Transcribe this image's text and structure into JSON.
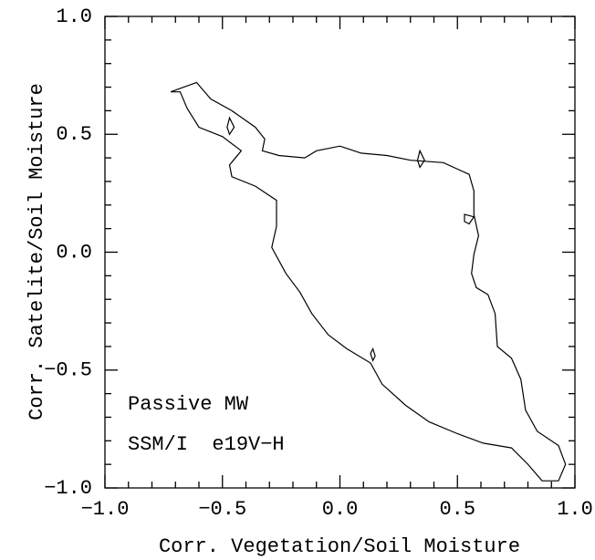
{
  "chart_data": {
    "type": "contour",
    "xlabel": "Corr. Vegetation/Soil Moisture",
    "ylabel": "Corr. Satelite/Soil Moisture",
    "annotations": [
      "Passive MW",
      "SSM/I  e19V−H"
    ],
    "xlim": [
      -1,
      1
    ],
    "ylim": [
      -1,
      1
    ],
    "xticks": [
      {
        "value": -1,
        "label": "−1.0"
      },
      {
        "value": -0.5,
        "label": "−0.5"
      },
      {
        "value": 0,
        "label": "0.0"
      },
      {
        "value": 0.5,
        "label": "0.5"
      },
      {
        "value": 1,
        "label": "1.0"
      }
    ],
    "yticks": [
      {
        "value": -1,
        "label": "−1.0"
      },
      {
        "value": -0.5,
        "label": "−0.5"
      },
      {
        "value": 0,
        "label": "0.0"
      },
      {
        "value": 0.5,
        "label": "0.5"
      },
      {
        "value": 1,
        "label": "1.0"
      }
    ],
    "minor_xticks": [
      -0.9,
      -0.8,
      -0.7,
      -0.6,
      -0.4,
      -0.3,
      -0.2,
      -0.1,
      0.1,
      0.2,
      0.3,
      0.4,
      0.6,
      0.7,
      0.8,
      0.9
    ],
    "minor_yticks": [
      -0.9,
      -0.8,
      -0.7,
      -0.6,
      -0.4,
      -0.3,
      -0.2,
      -0.1,
      0.1,
      0.2,
      0.3,
      0.4,
      0.6,
      0.7,
      0.8,
      0.9
    ],
    "color": "#000000",
    "series": [
      {
        "x": [
          -0.72,
          -0.61,
          -0.55,
          -0.46,
          -0.36,
          -0.32,
          -0.33,
          -0.26,
          -0.15,
          -0.1,
          0.0,
          0.09,
          0.2,
          0.3,
          0.44,
          0.55,
          0.57,
          0.57,
          0.59,
          0.57,
          0.56,
          0.58,
          0.63,
          0.66,
          0.67,
          0.73,
          0.77,
          0.79,
          0.84,
          0.93,
          0.96,
          0.93,
          0.86,
          0.8,
          0.73,
          0.61,
          0.5,
          0.38,
          0.28,
          0.18,
          0.13,
          0.03,
          -0.05,
          -0.12,
          -0.17,
          -0.23,
          -0.29,
          -0.27,
          -0.27,
          -0.36,
          -0.46,
          -0.47,
          -0.42,
          -0.5,
          -0.6,
          -0.65,
          -0.68
        ],
        "y": [
          0.68,
          0.72,
          0.65,
          0.6,
          0.53,
          0.48,
          0.43,
          0.41,
          0.4,
          0.43,
          0.45,
          0.42,
          0.41,
          0.39,
          0.38,
          0.33,
          0.26,
          0.16,
          0.07,
          -0.01,
          -0.09,
          -0.15,
          -0.18,
          -0.26,
          -0.4,
          -0.45,
          -0.54,
          -0.67,
          -0.76,
          -0.82,
          -0.9,
          -0.97,
          -0.97,
          -0.9,
          -0.83,
          -0.81,
          -0.77,
          -0.72,
          -0.65,
          -0.56,
          -0.47,
          -0.41,
          -0.35,
          -0.26,
          -0.17,
          -0.09,
          0.02,
          0.11,
          0.22,
          0.28,
          0.32,
          0.37,
          0.43,
          0.49,
          0.53,
          0.61,
          0.68
        ]
      },
      {
        "x": [
          -0.47,
          -0.45,
          -0.47,
          -0.48
        ],
        "y": [
          0.57,
          0.53,
          0.5,
          0.53
        ]
      },
      {
        "x": [
          0.34,
          0.36,
          0.34,
          0.33
        ],
        "y": [
          0.43,
          0.39,
          0.36,
          0.39
        ]
      },
      {
        "x": [
          0.53,
          0.57,
          0.55,
          0.53
        ],
        "y": [
          0.16,
          0.15,
          0.12,
          0.13
        ]
      },
      {
        "x": [
          0.14,
          0.15,
          0.14,
          0.13
        ],
        "y": [
          -0.41,
          -0.44,
          -0.46,
          -0.43
        ]
      }
    ]
  }
}
